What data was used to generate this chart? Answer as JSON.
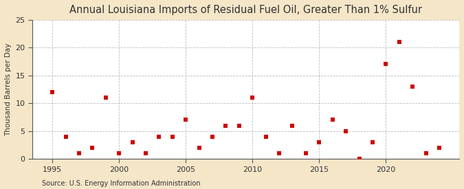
{
  "title": "Annual Louisiana Imports of Residual Fuel Oil, Greater Than 1% Sulfur",
  "ylabel": "Thousand Barrels per Day",
  "source": "Source: U.S. Energy Information Administration",
  "fig_background_color": "#f5e6c8",
  "plot_background_color": "#ffffff",
  "marker_color": "#cc0000",
  "years": [
    1995,
    1996,
    1997,
    1998,
    1999,
    2000,
    2001,
    2002,
    2003,
    2004,
    2005,
    2006,
    2007,
    2008,
    2009,
    2010,
    2011,
    2012,
    2013,
    2014,
    2015,
    2016,
    2017,
    2018,
    2019,
    2020,
    2021,
    2022,
    2023,
    2024
  ],
  "values": [
    12,
    4,
    1,
    2,
    11,
    1,
    3,
    1,
    4,
    4,
    7,
    2,
    4,
    6,
    6,
    11,
    4,
    1,
    6,
    1,
    3,
    7,
    5,
    0,
    3,
    17,
    21,
    13,
    1,
    2
  ],
  "xlim": [
    1993.5,
    2025.5
  ],
  "ylim": [
    0,
    25
  ],
  "yticks": [
    0,
    5,
    10,
    15,
    20,
    25
  ],
  "xticks": [
    1995,
    2000,
    2005,
    2010,
    2015,
    2020
  ],
  "vgrid_ticks": [
    1995,
    2000,
    2005,
    2010,
    2015,
    2020
  ],
  "title_fontsize": 10.5,
  "ylabel_fontsize": 7.5,
  "tick_fontsize": 8,
  "source_fontsize": 7
}
